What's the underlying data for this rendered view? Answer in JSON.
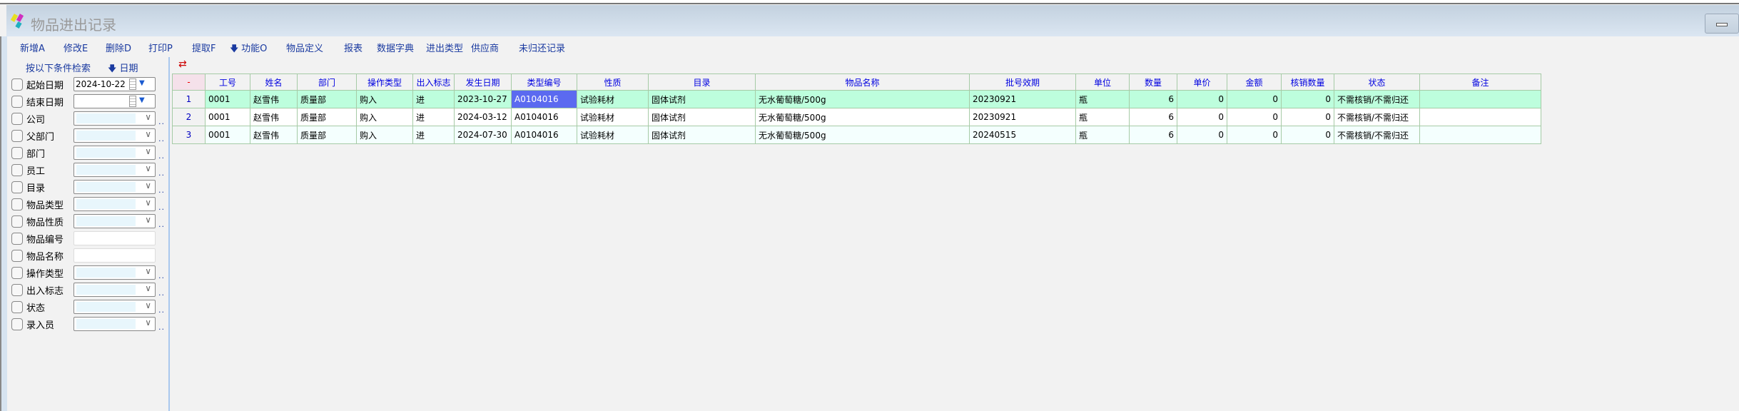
{
  "window": {
    "title": "物品进出记录"
  },
  "toolbar": [
    {
      "label": "新增A"
    },
    {
      "label": "修改E"
    },
    {
      "label": "删除D"
    },
    {
      "label": "打印P"
    },
    {
      "label": "提取F"
    },
    {
      "label": "功能O",
      "icon": "arrow-down-icon"
    },
    {
      "label": "物品定义"
    },
    {
      "label": "报表"
    },
    {
      "label": "数据字典"
    },
    {
      "label": "进出类型"
    },
    {
      "label": "供应商"
    },
    {
      "label": "未归还记录"
    }
  ],
  "filter": {
    "search_label": "按以下条件检索",
    "date_sort_label": "日期",
    "fields": [
      {
        "label": "起始日期",
        "type": "date",
        "value": "2024-10-22"
      },
      {
        "label": "结束日期",
        "type": "date",
        "value": ""
      },
      {
        "label": "公司",
        "type": "combo"
      },
      {
        "label": "父部门",
        "type": "combo"
      },
      {
        "label": "部门",
        "type": "combo"
      },
      {
        "label": "员工",
        "type": "combo"
      },
      {
        "label": "目录",
        "type": "combo"
      },
      {
        "label": "物品类型",
        "type": "combo"
      },
      {
        "label": "物品性质",
        "type": "combo"
      },
      {
        "label": "物品编号",
        "type": "text"
      },
      {
        "label": "物品名称",
        "type": "text"
      },
      {
        "label": "操作类型",
        "type": "combo"
      },
      {
        "label": "出入标志",
        "type": "combo"
      },
      {
        "label": "状态",
        "type": "combo"
      },
      {
        "label": "录入员",
        "type": "combo"
      }
    ]
  },
  "grid": {
    "corner": "-",
    "columns": [
      "工号",
      "姓名",
      "部门",
      "操作类型",
      "出入标志",
      "发生日期",
      "类型编号",
      "性质",
      "目录",
      "物品名称",
      "批号效期",
      "单位",
      "数量",
      "单价",
      "金额",
      "核销数量",
      "状态",
      "备注"
    ],
    "rows": [
      [
        "1",
        "0001",
        "赵雪伟",
        "质量部",
        "购入",
        "进",
        "2023-10-27",
        "A0104016",
        "试验耗材",
        "固体试剂",
        "无水葡萄糖/500g",
        "20230921",
        "瓶",
        "6",
        "0",
        "0",
        "0",
        "不需核销/不需归还",
        ""
      ],
      [
        "2",
        "0001",
        "赵雪伟",
        "质量部",
        "购入",
        "进",
        "2024-03-12",
        "A0104016",
        "试验耗材",
        "固体试剂",
        "无水葡萄糖/500g",
        "20230921",
        "瓶",
        "6",
        "0",
        "0",
        "0",
        "不需核销/不需归还",
        ""
      ],
      [
        "3",
        "0001",
        "赵雪伟",
        "质量部",
        "购入",
        "进",
        "2024-07-30",
        "A0104016",
        "试验耗材",
        "固体试剂",
        "无水葡萄糖/500g",
        "20240515",
        "瓶",
        "6",
        "0",
        "0",
        "0",
        "不需核销/不需归还",
        ""
      ]
    ],
    "selected_row": 0,
    "selected_column": "类型编号"
  },
  "colors": {
    "row_selected": "#bdfedd",
    "cell_selected": "#5b6af0",
    "header_text": "#0000e0",
    "toolbar_text": "#1a3aa0"
  }
}
